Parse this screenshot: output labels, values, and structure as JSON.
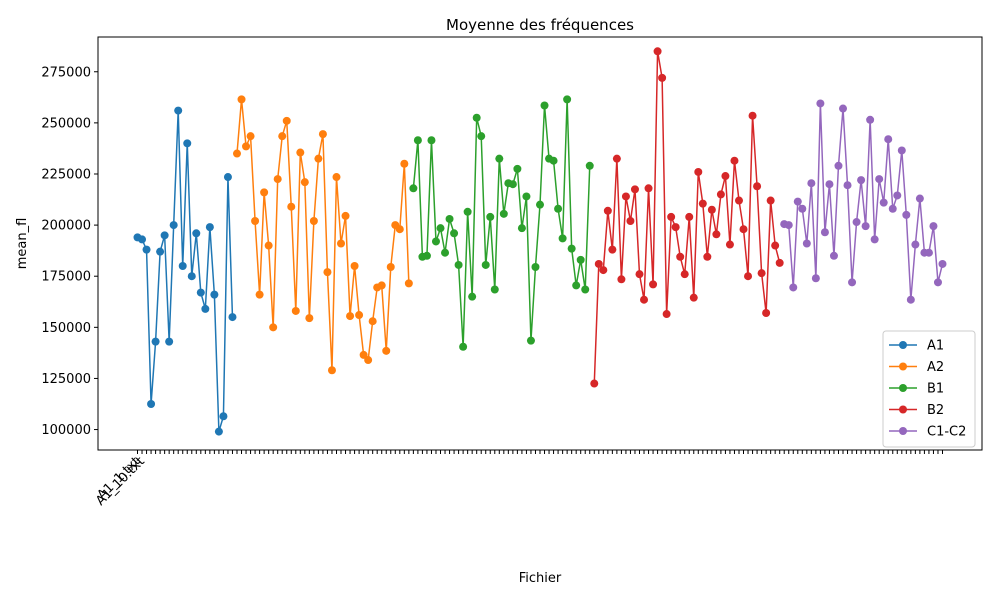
{
  "chart_data": {
    "type": "line",
    "title": "Moyenne des fréquences",
    "xlabel": "Fichier",
    "ylabel": "mean_fl",
    "ylim": [
      90000,
      292000
    ],
    "yticks": [
      100000,
      125000,
      150000,
      175000,
      200000,
      225000,
      250000,
      275000
    ],
    "ytick_labels": [
      "100000",
      "125000",
      "150000",
      "175000",
      "200000",
      "225000",
      "250000",
      "275000"
    ],
    "x_tick_labels_visible": [
      "A1_1.txt",
      "A1_10.txt"
    ],
    "legend_position": "lower-right",
    "markers": "circle",
    "grid": false,
    "series": [
      {
        "name": "A1",
        "color": "#1f77b4",
        "values": [
          194000,
          193000,
          188000,
          112500,
          143000,
          187000,
          195000,
          143000,
          200000,
          256000,
          180000,
          240000,
          175000,
          196000,
          167000,
          159000,
          199000,
          166000,
          99000,
          106500,
          223500,
          155000
        ]
      },
      {
        "name": "A2",
        "color": "#ff7f0e",
        "values": [
          235000,
          261500,
          238500,
          243500,
          202000,
          166000,
          216000,
          190000,
          150000,
          222500,
          243500,
          251000,
          209000,
          158000,
          235500,
          221000,
          154500,
          202000,
          232500,
          244500,
          177000,
          129000,
          223500,
          191000,
          204500,
          155500,
          180000,
          156000,
          136500,
          134000,
          153000,
          169500,
          170500,
          138500,
          179500,
          200000,
          198000,
          230000,
          171500
        ]
      },
      {
        "name": "B1",
        "color": "#2ca02c",
        "values": [
          218000,
          241500,
          184500,
          185000,
          241500,
          192000,
          198500,
          186500,
          203000,
          196000,
          180500,
          140500,
          206500,
          165000,
          252500,
          243500,
          180500,
          204000,
          168500,
          232500,
          205500,
          220500,
          220000,
          227500,
          198500,
          214000,
          143500,
          179500,
          210000,
          258500,
          232500,
          231500,
          208000,
          193500,
          261500,
          188500,
          170500,
          183000,
          168500,
          229000
        ]
      },
      {
        "name": "B2",
        "color": "#d62728",
        "values": [
          122500,
          181000,
          178000,
          207000,
          188000,
          232500,
          173500,
          214000,
          202000,
          217500,
          176000,
          163500,
          218000,
          171000,
          285000,
          272000,
          156500,
          204000,
          199000,
          184500,
          176000,
          204000,
          164500,
          226000,
          210500,
          184500,
          207500,
          195500,
          215000,
          224000,
          190500,
          231500,
          212000,
          198000,
          175000,
          253500,
          219000,
          176500,
          157000,
          212000,
          190000,
          181500
        ]
      },
      {
        "name": "C1-C2",
        "color": "#9467bd",
        "values": [
          200500,
          200000,
          169500,
          211500,
          208000,
          191000,
          220500,
          174000,
          259500,
          196500,
          220000,
          185000,
          229000,
          257000,
          219500,
          172000,
          201500,
          222000,
          199500,
          251500,
          193000,
          222500,
          211000,
          242000,
          208000,
          214500,
          236500,
          205000,
          163500,
          190500,
          213000,
          186500,
          186500,
          199500,
          172000,
          181000
        ]
      }
    ]
  }
}
